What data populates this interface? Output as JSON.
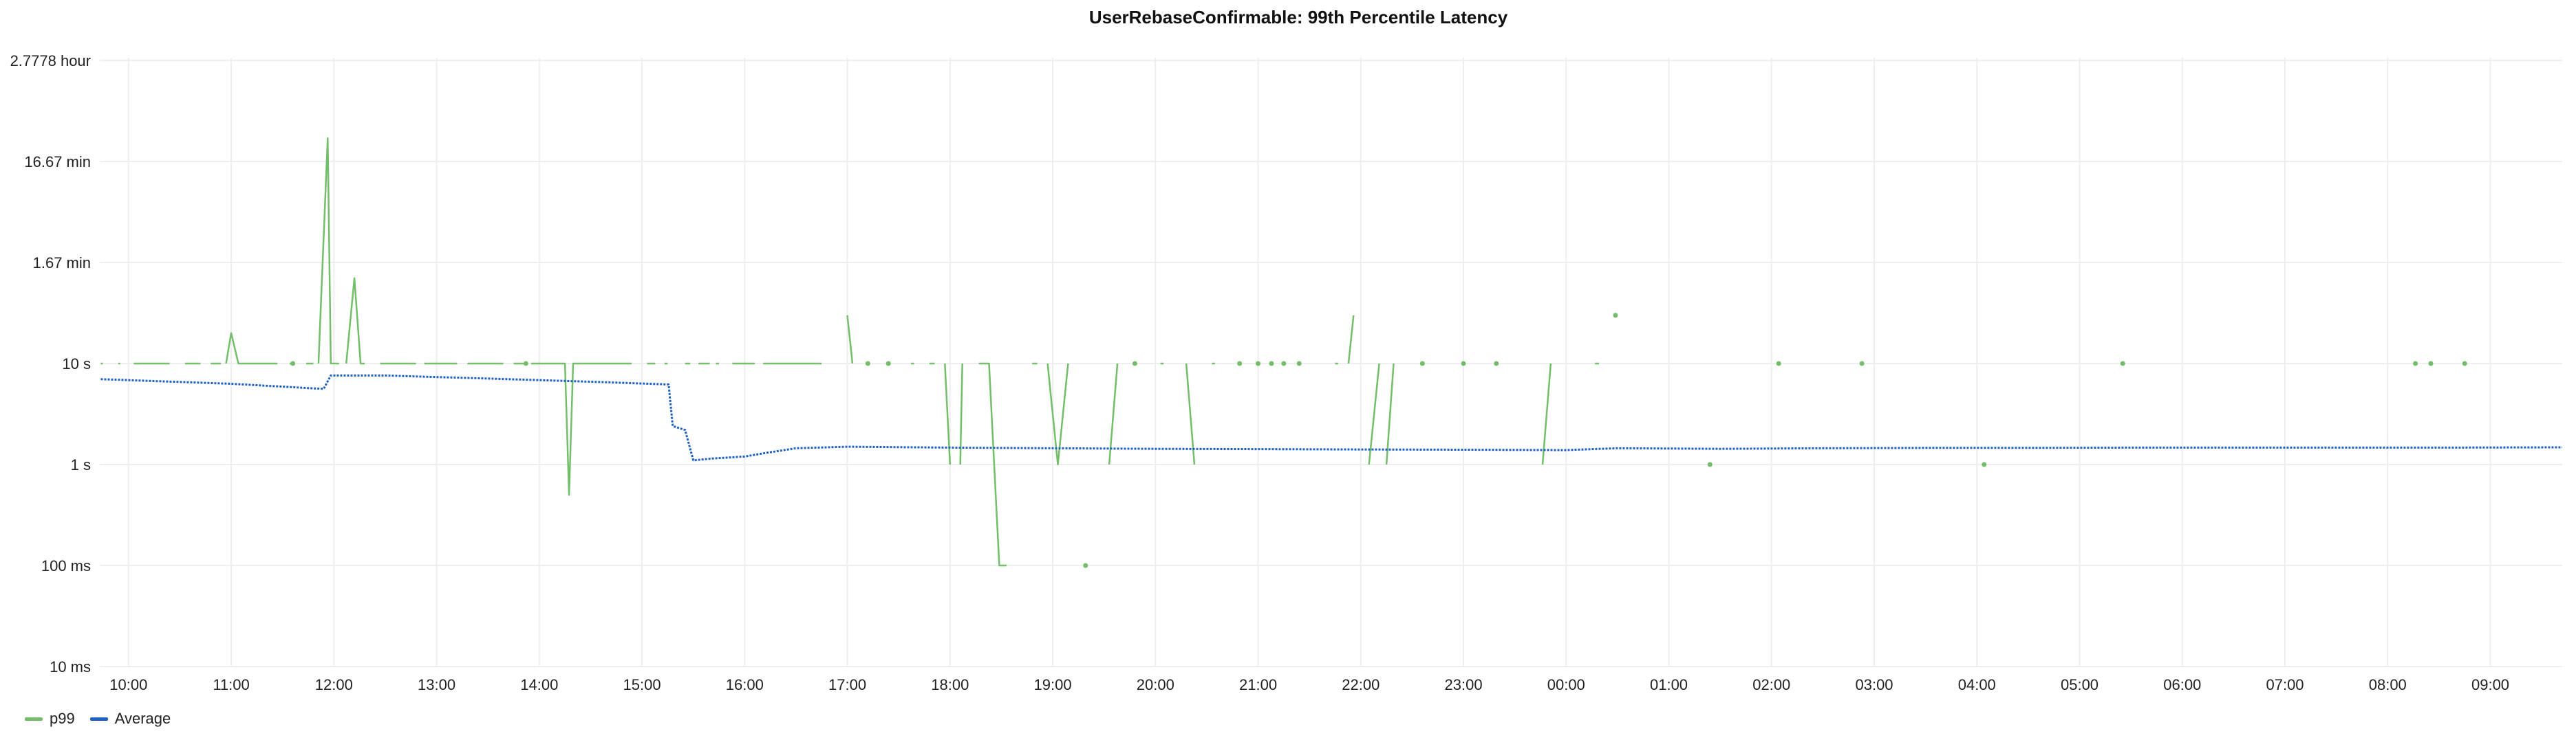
{
  "colors": {
    "p99": "#73bf69",
    "average": "#1f60c4",
    "grid": "#eeeeee"
  },
  "legend": [
    {
      "name": "p99",
      "color": "#73bf69"
    },
    {
      "name": "Average",
      "color": "#1f60c4"
    }
  ],
  "chart_data": {
    "type": "line",
    "title": "UserRebaseConfirmable: 99th Percentile Latency",
    "y_scale": "log10",
    "y_unit": "seconds",
    "ylim": [
      0.01,
      10000
    ],
    "y_ticks": [
      {
        "value": 0.01,
        "label": "10 ms"
      },
      {
        "value": 0.1,
        "label": "100 ms"
      },
      {
        "value": 1,
        "label": "1 s"
      },
      {
        "value": 10,
        "label": "10 s"
      },
      {
        "value": 100,
        "label": "1.67 min"
      },
      {
        "value": 1000,
        "label": "16.67 min"
      },
      {
        "value": 10000,
        "label": "2.7778 hour"
      }
    ],
    "x_unit": "hours since 10:00",
    "xlim": [
      -0.28,
      23.7
    ],
    "x_ticks": [
      "10:00",
      "11:00",
      "12:00",
      "13:00",
      "14:00",
      "15:00",
      "16:00",
      "17:00",
      "18:00",
      "19:00",
      "20:00",
      "21:00",
      "22:00",
      "23:00",
      "00:00",
      "01:00",
      "02:00",
      "03:00",
      "04:00",
      "05:00",
      "06:00",
      "07:00",
      "08:00",
      "09:00"
    ],
    "grid": true,
    "legend_position": "bottom-left",
    "series": [
      {
        "name": "p99",
        "color": "#73bf69",
        "segments": [
          [
            [
              -0.27,
              10
            ],
            [
              -0.25,
              10
            ]
          ],
          [
            [
              -0.1,
              10
            ],
            [
              -0.08,
              10
            ]
          ],
          [
            [
              0.05,
              10
            ],
            [
              0.4,
              10
            ]
          ],
          [
            [
              0.55,
              10
            ],
            [
              0.7,
              10
            ]
          ],
          [
            [
              0.8,
              10
            ],
            [
              0.9,
              10
            ]
          ],
          [
            [
              0.95,
              10
            ],
            [
              1.0,
              20
            ],
            [
              1.07,
              10
            ],
            [
              1.45,
              10
            ]
          ],
          [
            [
              1.57,
              10
            ],
            [
              1.58,
              10
            ]
          ],
          [
            [
              1.73,
              10
            ],
            [
              1.8,
              10
            ]
          ],
          [
            [
              1.85,
              10
            ],
            [
              1.94,
              1700
            ],
            [
              1.97,
              10
            ],
            [
              2.05,
              10
            ]
          ],
          [
            [
              2.12,
              10
            ],
            [
              2.2,
              70
            ],
            [
              2.26,
              10
            ],
            [
              2.3,
              10
            ]
          ],
          [
            [
              2.45,
              10
            ],
            [
              2.8,
              10
            ]
          ],
          [
            [
              2.88,
              10
            ],
            [
              3.2,
              10
            ]
          ],
          [
            [
              3.3,
              10
            ],
            [
              3.65,
              10
            ]
          ],
          [
            [
              3.75,
              10
            ],
            [
              3.86,
              10
            ]
          ],
          [
            [
              3.92,
              10
            ],
            [
              4.25,
              10
            ],
            [
              4.29,
              0.5
            ],
            [
              4.33,
              10
            ],
            [
              4.9,
              10
            ]
          ],
          [
            [
              5.05,
              10
            ],
            [
              5.13,
              10
            ]
          ],
          [
            [
              5.22,
              10
            ],
            [
              5.25,
              10
            ]
          ],
          [
            [
              5.42,
              10
            ],
            [
              5.47,
              10
            ]
          ],
          [
            [
              5.55,
              10
            ],
            [
              5.66,
              10
            ]
          ],
          [
            [
              5.72,
              10
            ],
            [
              5.75,
              10
            ]
          ],
          [
            [
              5.88,
              10
            ],
            [
              6.1,
              10
            ]
          ],
          [
            [
              6.18,
              10
            ],
            [
              6.75,
              10
            ]
          ],
          [
            [
              7.0,
              30
            ],
            [
              7.05,
              10
            ]
          ],
          [
            [
              7.38,
              10
            ],
            [
              7.4,
              10
            ]
          ],
          [
            [
              7.62,
              10
            ],
            [
              7.65,
              10
            ]
          ],
          [
            [
              7.8,
              10
            ],
            [
              7.85,
              10
            ]
          ],
          [
            [
              7.95,
              10
            ],
            [
              8.0,
              1
            ]
          ],
          [
            [
              8.1,
              1
            ],
            [
              8.12,
              10
            ]
          ],
          [
            [
              8.28,
              10
            ],
            [
              8.38,
              10
            ],
            [
              8.48,
              0.1
            ],
            [
              8.55,
              0.1
            ]
          ],
          [
            [
              8.8,
              10
            ],
            [
              8.85,
              10
            ]
          ],
          [
            [
              8.95,
              10
            ],
            [
              9.05,
              1
            ],
            [
              9.15,
              10
            ]
          ],
          [
            [
              9.55,
              1
            ],
            [
              9.63,
              10
            ]
          ],
          [
            [
              10.05,
              10
            ],
            [
              10.08,
              10
            ]
          ],
          [
            [
              10.3,
              10
            ],
            [
              10.38,
              1
            ]
          ],
          [
            [
              10.55,
              10
            ],
            [
              10.58,
              10
            ]
          ],
          [
            [
              11.75,
              10
            ],
            [
              11.78,
              10
            ]
          ],
          [
            [
              11.88,
              10
            ],
            [
              11.93,
              30
            ]
          ],
          [
            [
              12.08,
              1
            ],
            [
              12.18,
              10
            ]
          ],
          [
            [
              12.25,
              1
            ],
            [
              12.32,
              10
            ]
          ],
          [
            [
              13.77,
              1
            ],
            [
              13.85,
              10
            ]
          ],
          [
            [
              14.28,
              10
            ],
            [
              14.32,
              10
            ]
          ]
        ],
        "points": [
          [
            1.6,
            10
          ],
          [
            3.87,
            10
          ],
          [
            7.2,
            10
          ],
          [
            7.4,
            10
          ],
          [
            9.32,
            0.1
          ],
          [
            9.8,
            10
          ],
          [
            10.82,
            10
          ],
          [
            11.0,
            10
          ],
          [
            11.13,
            10
          ],
          [
            11.25,
            10
          ],
          [
            11.4,
            10
          ],
          [
            12.6,
            10
          ],
          [
            13.0,
            10
          ],
          [
            13.32,
            10
          ],
          [
            14.48,
            30
          ],
          [
            15.4,
            1
          ],
          [
            16.07,
            10
          ],
          [
            16.88,
            10
          ],
          [
            18.07,
            1
          ],
          [
            19.42,
            10
          ],
          [
            22.27,
            10
          ],
          [
            22.42,
            10
          ],
          [
            22.75,
            10
          ]
        ]
      },
      {
        "name": "Average",
        "color": "#1f60c4",
        "line": [
          [
            -0.27,
            7.0
          ],
          [
            1.0,
            6.3
          ],
          [
            1.9,
            5.6
          ],
          [
            1.97,
            7.6
          ],
          [
            2.5,
            7.6
          ],
          [
            3.5,
            7.1
          ],
          [
            4.5,
            6.6
          ],
          [
            5.26,
            6.2
          ],
          [
            5.3,
            2.4
          ],
          [
            5.42,
            2.2
          ],
          [
            5.5,
            1.1
          ],
          [
            5.7,
            1.15
          ],
          [
            6.0,
            1.2
          ],
          [
            6.2,
            1.3
          ],
          [
            6.5,
            1.45
          ],
          [
            7.0,
            1.5
          ],
          [
            8.0,
            1.47
          ],
          [
            9.0,
            1.45
          ],
          [
            10.0,
            1.43
          ],
          [
            11.0,
            1.42
          ],
          [
            12.0,
            1.41
          ],
          [
            13.0,
            1.4
          ],
          [
            14.0,
            1.39
          ],
          [
            14.5,
            1.45
          ],
          [
            15.5,
            1.43
          ],
          [
            16.5,
            1.45
          ],
          [
            17.5,
            1.46
          ],
          [
            18.5,
            1.46
          ],
          [
            19.5,
            1.47
          ],
          [
            20.5,
            1.47
          ],
          [
            21.5,
            1.47
          ],
          [
            22.5,
            1.47
          ],
          [
            23.7,
            1.48
          ]
        ]
      }
    ]
  }
}
